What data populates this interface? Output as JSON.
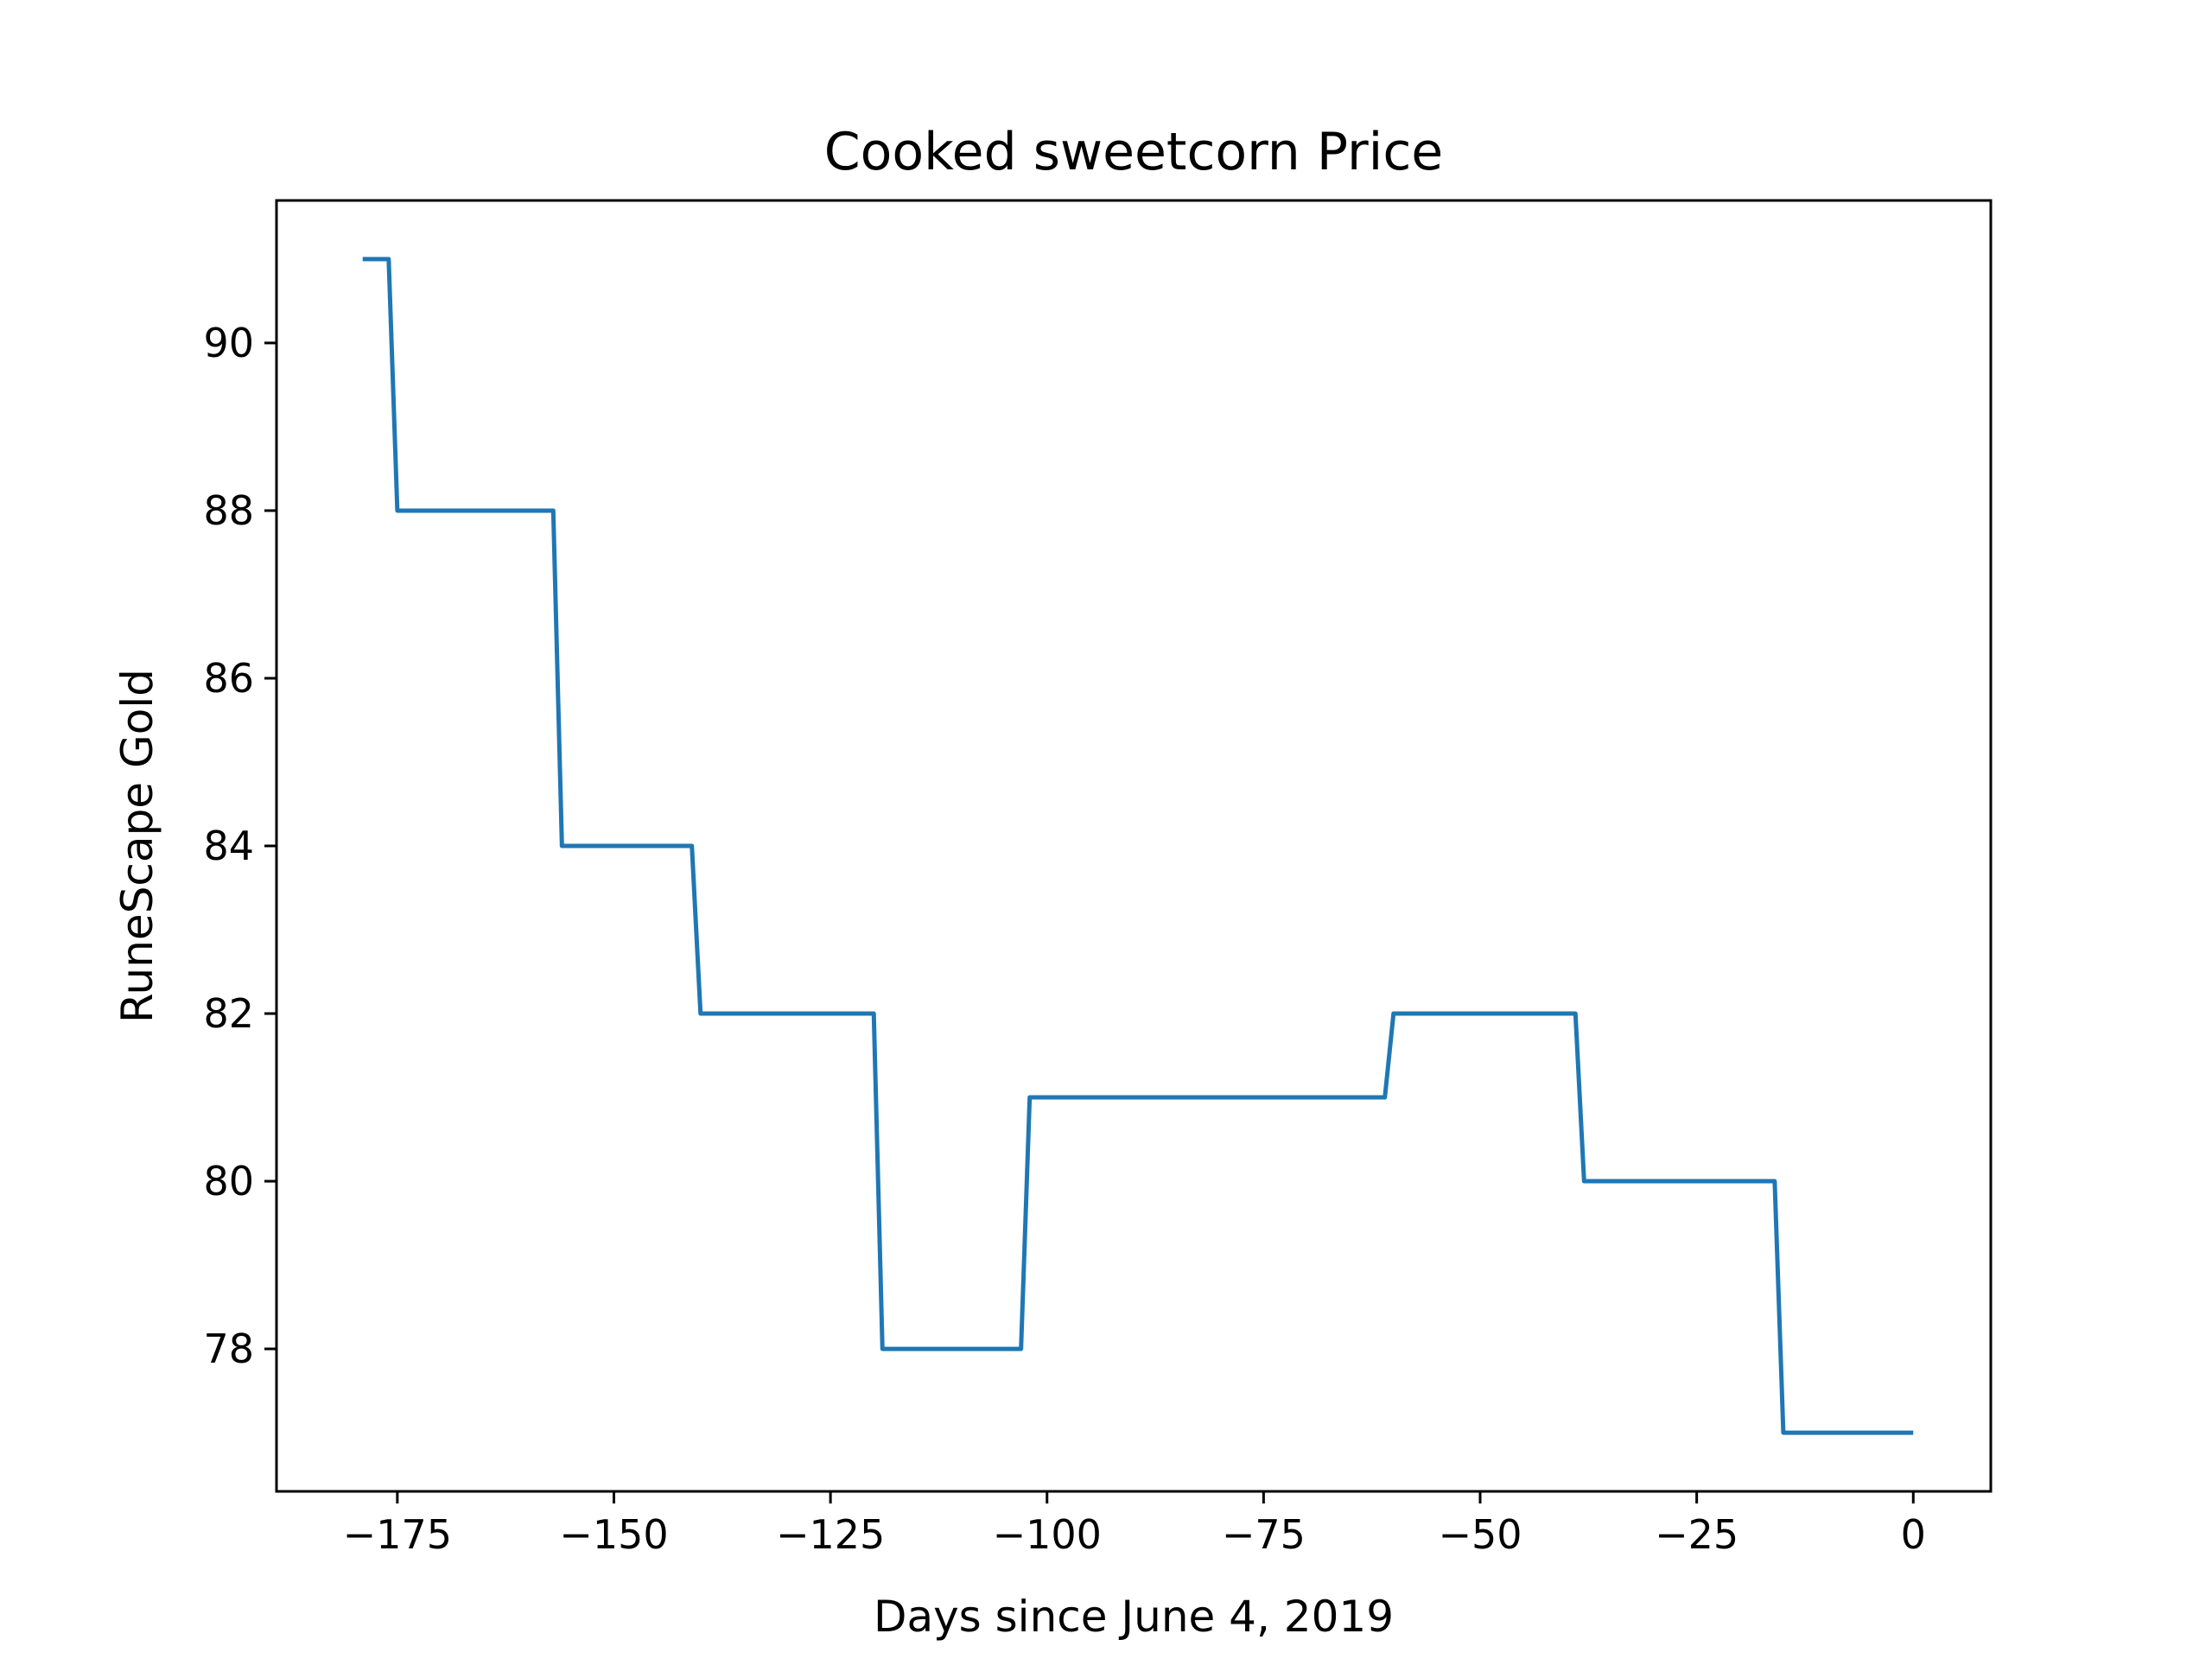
{
  "chart_data": {
    "type": "line",
    "title": "Cooked sweetcorn Price",
    "xlabel": "Days since June 4, 2019",
    "ylabel": "RuneScape Gold",
    "xlim": [
      -188.95,
      8.95
    ],
    "ylim": [
      76.3,
      91.7
    ],
    "xticks": [
      -175,
      -150,
      -125,
      -100,
      -75,
      -50,
      -25,
      0
    ],
    "xtick_labels": [
      "−175",
      "−150",
      "−125",
      "−100",
      "−75",
      "−50",
      "−25",
      "0"
    ],
    "yticks": [
      78,
      80,
      82,
      84,
      86,
      88,
      90
    ],
    "ytick_labels": [
      "78",
      "80",
      "82",
      "84",
      "86",
      "88",
      "90"
    ],
    "grid": false,
    "series": [
      {
        "color": "#1f77b4",
        "x": [
          -179,
          -176,
          -175,
          -157,
          -156,
          -141,
          -140,
          -120,
          -119,
          -103,
          -102,
          -61,
          -60,
          -39,
          -38,
          -16,
          -15,
          0
        ],
        "y": [
          91,
          91,
          88,
          88,
          84,
          84,
          82,
          82,
          78,
          78,
          81,
          81,
          82,
          82,
          80,
          80,
          77,
          77
        ]
      }
    ]
  }
}
